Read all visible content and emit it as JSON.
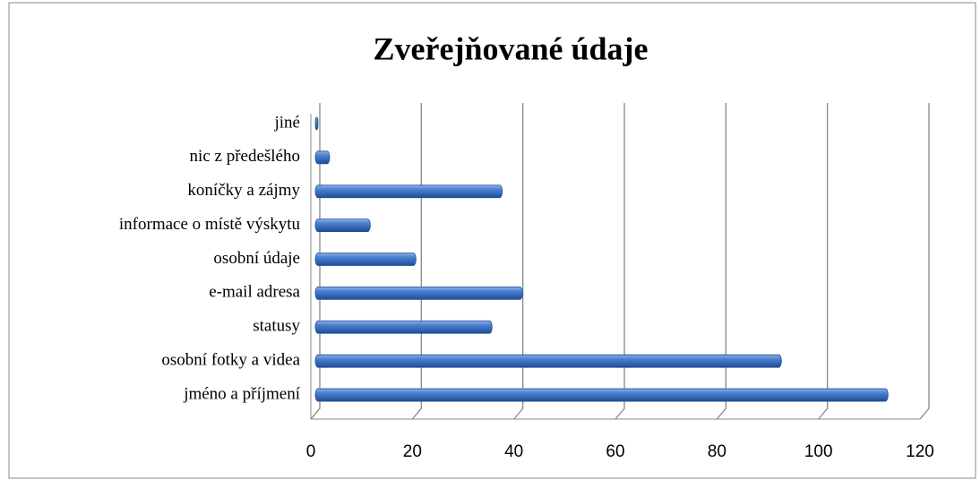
{
  "chart_data": {
    "type": "bar",
    "orientation": "horizontal",
    "title": "Zveřejňované údaje",
    "categories": [
      "jméno a příjmení",
      "osobní fotky a videa",
      "statusy",
      "e-mail adresa",
      "osobní údaje",
      "informace o místě výskytu",
      "koníčky a zájmy",
      "nic z předešlého",
      "jiné"
    ],
    "values": [
      113,
      92,
      35,
      41,
      20,
      11,
      37,
      3,
      0
    ],
    "color": "#3a6fc4",
    "xlim": [
      0,
      120
    ],
    "xticks": [
      0,
      20,
      40,
      60,
      80,
      100,
      120
    ],
    "grid": true
  }
}
